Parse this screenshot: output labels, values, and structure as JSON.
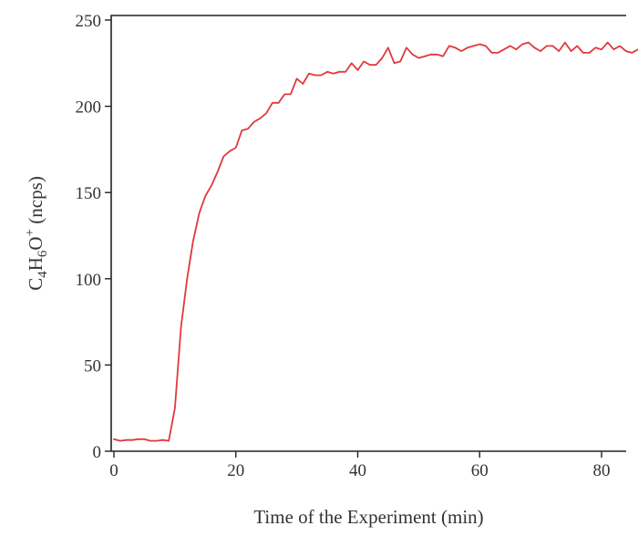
{
  "chart_data": {
    "type": "line",
    "title": "",
    "xlabel": "Time of the Experiment (min)",
    "ylabel_parts": {
      "base1": "C",
      "sub1": "4",
      "base2": "H",
      "sub2": "6",
      "base3": "O",
      "sup": "+",
      "unit": " (ncps)"
    },
    "xlim": [
      0,
      87
    ],
    "ylim": [
      0,
      250
    ],
    "x_ticks": [
      0,
      20,
      40,
      60,
      80
    ],
    "y_ticks": [
      0,
      50,
      100,
      150,
      200,
      250
    ],
    "grid": false,
    "legend": "none",
    "series": [
      {
        "color": "#e0393e",
        "x": [
          0,
          1,
          2,
          3,
          4,
          5,
          6,
          7,
          8,
          9,
          10,
          11,
          12,
          13,
          14,
          15,
          16,
          17,
          18,
          19,
          20,
          21,
          22,
          23,
          24,
          25,
          26,
          27,
          28,
          29,
          30,
          31,
          32,
          33,
          34,
          35,
          36,
          37,
          38,
          39,
          40,
          41,
          42,
          43,
          44,
          45,
          46,
          47,
          48,
          49,
          50,
          51,
          52,
          53,
          54,
          55,
          56,
          57,
          58,
          59,
          60,
          61,
          62,
          63,
          64,
          65,
          66,
          67,
          68,
          69,
          70,
          71,
          72,
          73,
          74,
          75,
          76,
          77,
          78,
          79,
          80,
          81,
          82,
          83,
          84,
          85,
          86,
          87
        ],
        "y": [
          7,
          6,
          6.5,
          6.5,
          7,
          7,
          6,
          6,
          6.5,
          6,
          25,
          72,
          100,
          122,
          138,
          148,
          154,
          162,
          171,
          174,
          176,
          186,
          187,
          191,
          193,
          196,
          202,
          202,
          207,
          207,
          216,
          213,
          219,
          218,
          218,
          220,
          219,
          220,
          220,
          225,
          221,
          226,
          224,
          224,
          228,
          234,
          225,
          226,
          234,
          230,
          228,
          229,
          230,
          230,
          229,
          235,
          234,
          232,
          234,
          235,
          236,
          235,
          231,
          231,
          233,
          235,
          233,
          236,
          237,
          234,
          232,
          235,
          235,
          232,
          237,
          232,
          235,
          231,
          231,
          234,
          233,
          237,
          233,
          235,
          232,
          231,
          233,
          234
        ]
      }
    ]
  }
}
